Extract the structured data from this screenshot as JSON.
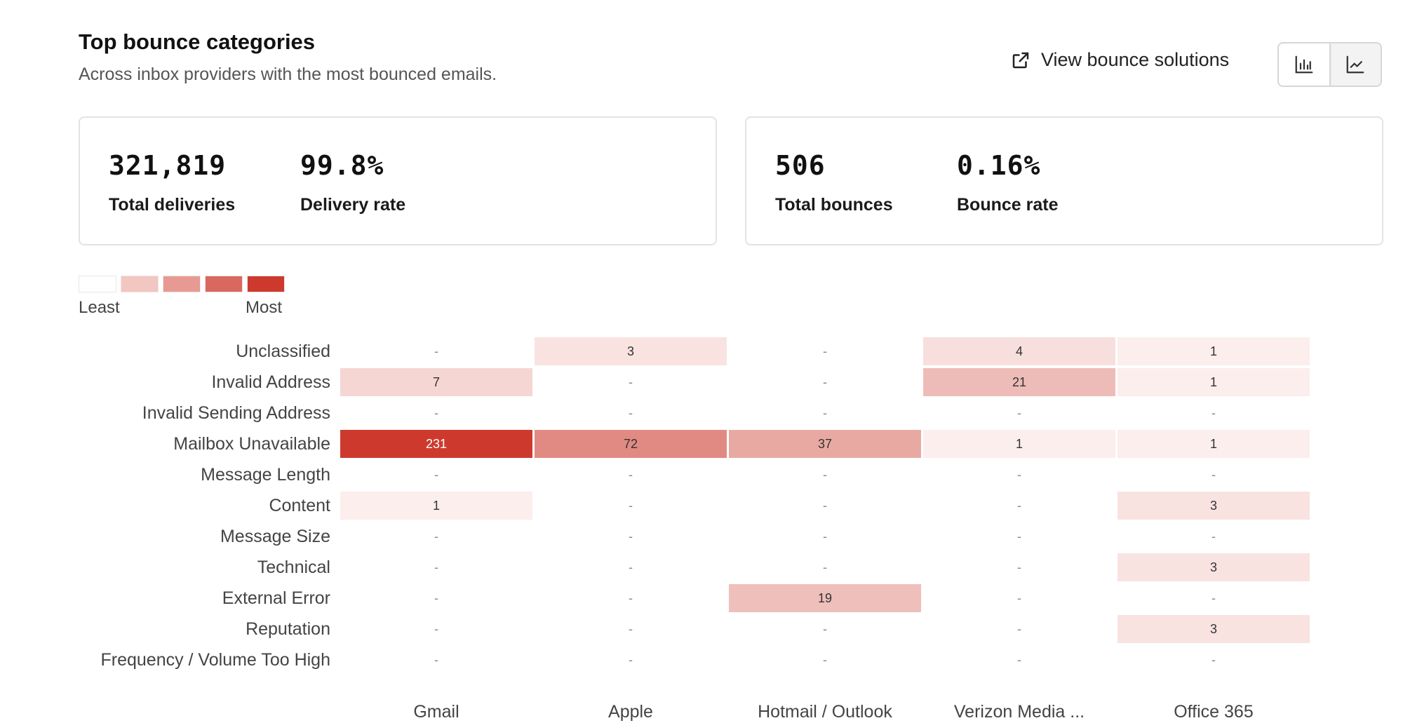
{
  "header": {
    "title": "Top bounce categories",
    "subtitle": "Across inbox providers with the most bounced emails."
  },
  "actions": {
    "solutions_label": "View bounce solutions",
    "solutions_icon": "external-link-icon",
    "toggle": [
      {
        "icon": "bar-chart-icon",
        "active": true
      },
      {
        "icon": "line-chart-icon",
        "active": false
      }
    ]
  },
  "stats": {
    "deliveries": {
      "value": "321,819",
      "label": "Total deliveries"
    },
    "delivery_rate": {
      "value": "99.8%",
      "label": "Delivery rate"
    },
    "bounces": {
      "value": "506",
      "label": "Total bounces"
    },
    "bounce_rate": {
      "value": "0.16%",
      "label": "Bounce rate"
    }
  },
  "legend": {
    "least": "Least",
    "most": "Most",
    "colors": [
      "#ffffff",
      "#f2c6c1",
      "#e69a93",
      "#d9685e",
      "#cd3a2d"
    ]
  },
  "chart_data": {
    "type": "heatmap",
    "x_categories": [
      "Gmail",
      "Apple",
      "Hotmail / Outlook",
      "Verizon Media ...",
      "Office 365"
    ],
    "y_categories": [
      "Unclassified",
      "Invalid Address",
      "Invalid Sending Address",
      "Mailbox Unavailable",
      "Message Length",
      "Content",
      "Message Size",
      "Technical",
      "External Error",
      "Reputation",
      "Frequency / Volume Too High"
    ],
    "values": [
      [
        null,
        3,
        null,
        4,
        1
      ],
      [
        7,
        null,
        null,
        21,
        1
      ],
      [
        null,
        null,
        null,
        null,
        null
      ],
      [
        231,
        72,
        37,
        1,
        1
      ],
      [
        null,
        null,
        null,
        null,
        null
      ],
      [
        1,
        null,
        null,
        null,
        3
      ],
      [
        null,
        null,
        null,
        null,
        null
      ],
      [
        null,
        null,
        null,
        null,
        3
      ],
      [
        null,
        null,
        19,
        null,
        null
      ],
      [
        null,
        null,
        null,
        null,
        3
      ],
      [
        null,
        null,
        null,
        null,
        null
      ]
    ],
    "empty_label": "-",
    "color_min": "#ffffff",
    "color_max": "#cd3a2d"
  }
}
